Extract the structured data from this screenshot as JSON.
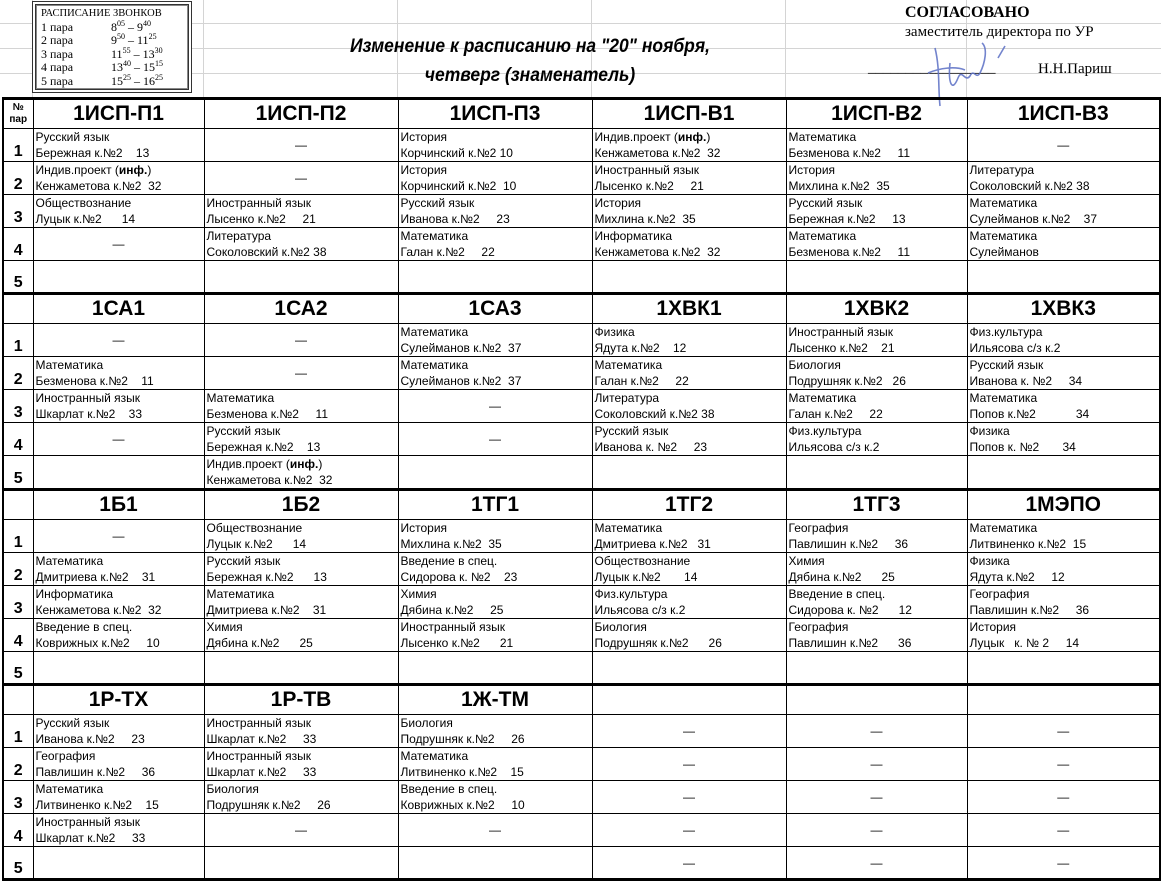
{
  "bells": {
    "title": "РАСПИСАНИЕ ЗВОНКОВ",
    "rows": [
      {
        "label": "1 пара",
        "start_h": "8",
        "start_m": "05",
        "end_h": "9",
        "end_m": "40"
      },
      {
        "label": "2 пара",
        "start_h": "9",
        "start_m": "50",
        "end_h": "11",
        "end_m": "25"
      },
      {
        "label": "3 пара",
        "start_h": "11",
        "start_m": "55",
        "end_h": "13",
        "end_m": "30"
      },
      {
        "label": "4 пара",
        "start_h": "13",
        "start_m": "40",
        "end_h": "15",
        "end_m": "15"
      },
      {
        "label": "5 пара",
        "start_h": "15",
        "start_m": "25",
        "end_h": "16",
        "end_m": "25"
      }
    ]
  },
  "title": {
    "line1": "Изменение к расписанию на \"20\" ноября,",
    "line2": "четверг (знаменатель)"
  },
  "approval": {
    "heading": "СОГЛАСОВАНО",
    "position": "заместитель директора по УР",
    "signature_line": "_________________",
    "name": "Н.Н.Париш"
  },
  "colors": {
    "signature": "#5a6fc4",
    "grid": "#d4d4d4"
  },
  "header_num": {
    "line1": "№",
    "line2": "пар"
  },
  "row_numbers": [
    "1",
    "2",
    "3",
    "4",
    "5"
  ],
  "dash": "—",
  "blocks": [
    {
      "groups": [
        "1ИСП-П1",
        "1ИСП-П2",
        "1ИСП-П3",
        "1ИСП-В1",
        "1ИСП-В2",
        "1ИСП-В3"
      ],
      "rows": [
        [
          {
            "s": "Русский язык",
            "t": "Бережная к.№2    13"
          },
          "—",
          {
            "s": "История",
            "t": "Корчинский к.№2 10"
          },
          {
            "s": "Индив.проект (",
            "b": "инф.",
            "a": ")",
            "t": "Кенжаметова к.№2  32"
          },
          {
            "s": "Математика",
            "t": "Безменова к.№2     11"
          },
          "—"
        ],
        [
          {
            "s": "Индив.проект (",
            "b": "инф.",
            "a": ")",
            "t": "Кенжаметова к.№2  32"
          },
          "—",
          {
            "s": "История",
            "t": "Корчинский к.№2  10"
          },
          {
            "s": "Иностранный язык",
            "t": "Лысенко к.№2     21"
          },
          {
            "s": "История",
            "t": "Михлина к.№2  35"
          },
          {
            "s": "Литература",
            "t": "Соколовский к.№2 38"
          }
        ],
        [
          {
            "s": "Обществознание",
            "t": "Луцык к.№2      14"
          },
          {
            "s": "Иностранный язык",
            "t": "Лысенко к.№2     21"
          },
          {
            "s": "Русский язык",
            "t": "Иванова к.№2     23"
          },
          {
            "s": "История",
            "t": "Михлина к.№2  35"
          },
          {
            "s": "Русский язык",
            "t": "Бережная к.№2     13"
          },
          {
            "s": "Математика",
            "t": "Сулейманов к.№2    37"
          }
        ],
        [
          "—",
          {
            "s": "Литература",
            "t": "Соколовский к.№2 38"
          },
          {
            "s": "Математика",
            "t": "Галан к.№2     22"
          },
          {
            "s": "Информатика",
            "t": "Кенжаметова к.№2  32"
          },
          {
            "s": "Математика",
            "t": "Безменова к.№2     11"
          },
          {
            "s": "Математика",
            "t": "Сулейманов"
          }
        ],
        [
          "",
          "",
          "",
          "",
          "",
          ""
        ]
      ]
    },
    {
      "groups": [
        "1СА1",
        "1СА2",
        "1СА3",
        "1ХВК1",
        "1ХВК2",
        "1ХВК3"
      ],
      "rows": [
        [
          "—",
          "—",
          {
            "s": "Математика",
            "t": "Сулейманов к.№2  37"
          },
          {
            "s": "Физика",
            "t": "Ядута к.№2    12"
          },
          {
            "s": "Иностранный язык",
            "t": "Лысенко к.№2    21"
          },
          {
            "s": "Физ.культура",
            "t": "Ильясова с/з к.2"
          }
        ],
        [
          {
            "s": "Математика",
            "t": "Безменова к.№2    11"
          },
          "—",
          {
            "s": "Математика",
            "t": "Сулейманов к.№2  37"
          },
          {
            "s": "Математика",
            "t": "Галан к.№2     22"
          },
          {
            "s": "Биология",
            "t": "Подрушняк к.№2   26"
          },
          {
            "s": "Русский язык",
            "t": "Иванова к. №2     34"
          }
        ],
        [
          {
            "s": "Иностранный язык",
            "t": "Шкарлат к.№2    33"
          },
          {
            "s": "Математика",
            "t": "Безменова к.№2     11"
          },
          "—",
          {
            "s": "Литература",
            "t": "Соколовский к.№2 38"
          },
          {
            "s": "Математика",
            "t": "Галан к.№2     22"
          },
          {
            "s": "Математика",
            "t": "Попов к.№2            34"
          }
        ],
        [
          "—",
          {
            "s": "Русский язык",
            "t": "Бережная к.№2    13"
          },
          "—",
          {
            "s": "Русский язык",
            "t": "Иванова к. №2     23"
          },
          {
            "s": "Физ.культура",
            "t": "Ильясова с/з к.2"
          },
          {
            "s": "Физика",
            "t": "Попов к. №2       34"
          }
        ],
        [
          "",
          {
            "s": "Индив.проект (",
            "b": "инф.",
            "a": ")",
            "t": "Кенжаметова к.№2  32"
          },
          "",
          "",
          "",
          ""
        ]
      ]
    },
    {
      "groups": [
        "1Б1",
        "1Б2",
        "1ТГ1",
        "1ТГ2",
        "1ТГ3",
        "1МЭПО"
      ],
      "rows": [
        [
          "—",
          {
            "s": "Обществознание",
            "t": "Луцык к.№2      14"
          },
          {
            "s": "История",
            "t": "Михлина к.№2  35"
          },
          {
            "s": "Математика",
            "t": "Дмитриева к.№2   31"
          },
          {
            "s": "География",
            "t": "Павлишин к.№2     36"
          },
          {
            "s": "Математика",
            "t": "Литвиненко к.№2  15"
          }
        ],
        [
          {
            "s": "Математика",
            "t": "Дмитриева к.№2    31"
          },
          {
            "s": "Русский язык",
            "t": "Бережная к.№2      13"
          },
          {
            "s": "Введение в спец.",
            "t": "Сидорова к. №2    23"
          },
          {
            "s": "Обществознание",
            "t": "Луцык к.№2       14"
          },
          {
            "s": "Химия",
            "t": "Дябина к.№2      25"
          },
          {
            "s": "Физика",
            "t": "Ядута к.№2     12"
          }
        ],
        [
          {
            "s": "Информатика",
            "t": "Кенжаметова к.№2  32"
          },
          {
            "s": "Математика",
            "t": "Дмитриева к.№2    31"
          },
          {
            "s": "Химия",
            "t": "Дябина к.№2     25"
          },
          {
            "s": "Физ.культура",
            "t": "Ильясова с/з к.2"
          },
          {
            "s": "Введение в спец.",
            "t": "Сидорова к. №2      12"
          },
          {
            "s": "География",
            "t": "Павлишин к.№2     36"
          }
        ],
        [
          {
            "s": "Введение в спец.",
            "t": "Коврижных к.№2     10"
          },
          {
            "s": "Химия",
            "t": "Дябина к.№2      25"
          },
          {
            "s": "Иностранный язык",
            "t": "Лысенко к.№2      21"
          },
          {
            "s": "Биология",
            "t": "Подрушняк к.№2      26"
          },
          {
            "s": "География",
            "t": "Павлишин к.№2      36"
          },
          {
            "s": "История",
            "t": "Луцык   к. № 2     14"
          }
        ],
        [
          "",
          "",
          "",
          "",
          "",
          ""
        ]
      ]
    },
    {
      "groups": [
        "1Р-ТХ",
        "1Р-ТВ",
        "1Ж-ТМ",
        "",
        "",
        ""
      ],
      "rows": [
        [
          {
            "s": "Русский язык",
            "t": "Иванова к.№2     23"
          },
          {
            "s": "Иностранный язык",
            "t": "Шкарлат к.№2     33"
          },
          {
            "s": "Биология",
            "t": "Подрушняк к.№2     26"
          },
          "—",
          "—",
          "—"
        ],
        [
          {
            "s": "География",
            "t": "Павлишин к.№2     36"
          },
          {
            "s": "Иностранный язык",
            "t": "Шкарлат к.№2     33"
          },
          {
            "s": "Математика",
            "t": "Литвиненко к.№2    15"
          },
          "—",
          "—",
          "—"
        ],
        [
          {
            "s": "Математика",
            "t": "Литвиненко к.№2    15"
          },
          {
            "s": "Биология",
            "t": "Подрушняк к.№2     26"
          },
          {
            "s": "Введение в спец.",
            "t": "Коврижных к.№2     10"
          },
          "—",
          "—",
          "—"
        ],
        [
          {
            "s": "Иностранный язык",
            "t": "Шкарлат к.№2     33"
          },
          "—",
          "—",
          "—",
          "—",
          "—"
        ],
        [
          "",
          "",
          "",
          "—",
          "—",
          "—"
        ]
      ]
    }
  ]
}
